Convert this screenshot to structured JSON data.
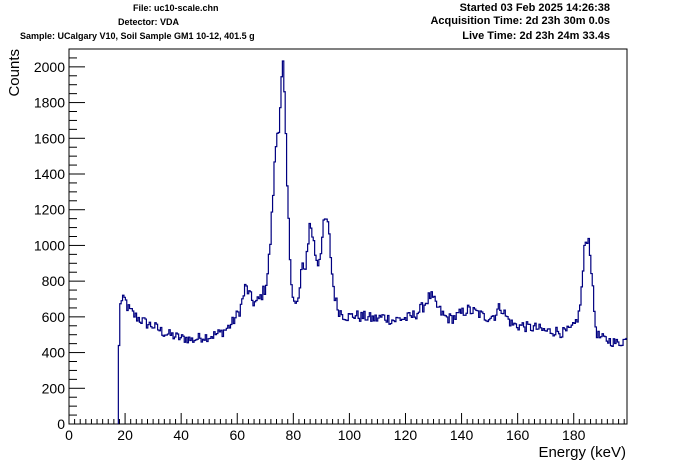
{
  "header": {
    "file": "File: uc10-scale.chn",
    "detector": "Detector: VDA",
    "sample": "Sample: UCalgary V10, Soil Sample GM1 10-12, 401.5 g",
    "started": "Started 03 Feb 2025 14:26:38",
    "acquisition": "Acquisition Time: 2d 23h 30m 0.0s",
    "live": "Live Time: 2d 23h 24m 33.4s"
  },
  "colors": {
    "series": "#000080",
    "axis": "#000000",
    "background": "#ffffff"
  },
  "chart_data": {
    "type": "line",
    "style": "step histogram",
    "xlabel": "Energy (keV)",
    "ylabel": "Counts",
    "xlim": [
      0,
      199
    ],
    "ylim": [
      0,
      2100
    ],
    "x_ticks": [
      0,
      20,
      40,
      60,
      80,
      100,
      120,
      140,
      160,
      180
    ],
    "y_ticks": [
      0,
      200,
      400,
      600,
      800,
      1000,
      1200,
      1400,
      1600,
      1800,
      2000
    ],
    "grid": false,
    "series": [
      {
        "x": [
          17.6,
          18,
          19,
          20,
          21,
          22,
          24,
          26,
          28,
          30,
          32,
          34,
          36,
          38,
          40,
          42,
          44,
          46,
          48,
          50,
          52,
          54,
          56,
          58,
          60,
          61,
          62,
          63,
          64,
          65,
          66,
          67,
          68,
          69,
          70,
          71,
          72,
          73,
          74,
          75,
          76,
          76.5,
          77,
          78,
          79,
          80,
          81,
          82,
          83,
          84,
          85,
          86,
          87,
          88,
          89,
          90,
          91,
          92,
          93,
          94,
          95,
          96,
          98,
          100,
          102,
          104,
          106,
          108,
          110,
          112,
          114,
          116,
          118,
          120,
          122,
          124,
          126,
          128,
          129,
          130,
          132,
          134,
          136,
          138,
          140,
          142,
          144,
          146,
          148,
          150,
          152,
          153,
          154,
          155,
          156,
          158,
          160,
          162,
          164,
          166,
          168,
          170,
          172,
          174,
          176,
          178,
          180,
          182,
          183,
          184,
          185,
          186,
          187,
          188,
          189,
          190,
          192,
          194,
          196,
          198,
          199
        ],
        "y": [
          0,
          690,
          680,
          700,
          650,
          630,
          600,
          580,
          560,
          550,
          530,
          510,
          500,
          490,
          480,
          480,
          470,
          480,
          490,
          490,
          500,
          510,
          530,
          560,
          610,
          640,
          700,
          770,
          740,
          700,
          680,
          680,
          700,
          730,
          760,
          860,
          1050,
          1350,
          1600,
          1700,
          1960,
          2010,
          1750,
          1250,
          880,
          700,
          660,
          700,
          880,
          850,
          980,
          1130,
          1050,
          940,
          900,
          1000,
          1120,
          1150,
          1020,
          810,
          700,
          640,
          610,
          600,
          610,
          600,
          600,
          590,
          590,
          600,
          590,
          580,
          590,
          590,
          600,
          620,
          650,
          700,
          720,
          690,
          640,
          600,
          590,
          600,
          620,
          640,
          630,
          620,
          600,
          600,
          610,
          640,
          660,
          630,
          600,
          560,
          550,
          550,
          540,
          540,
          530,
          520,
          520,
          520,
          510,
          520,
          540,
          620,
          780,
          1000,
          1060,
          960,
          700,
          520,
          490,
          480,
          470,
          460,
          450,
          470,
          470
        ]
      }
    ]
  }
}
